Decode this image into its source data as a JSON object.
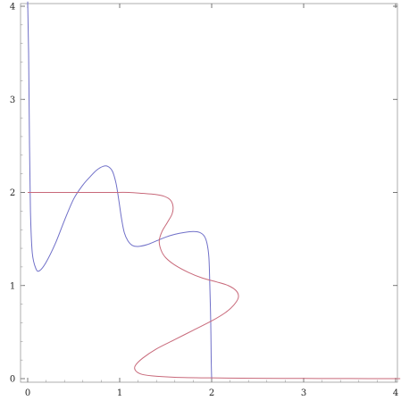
{
  "chart_data": {
    "type": "line",
    "title": "",
    "xlabel": "",
    "ylabel": "",
    "xlim": [
      0,
      4
    ],
    "ylim": [
      0,
      4
    ],
    "x_ticks": [
      0,
      1,
      2,
      3,
      4
    ],
    "y_ticks": [
      0,
      1,
      2,
      3,
      4
    ],
    "x_tick_labels": [
      "0",
      "1",
      "2",
      "3",
      "4"
    ],
    "y_tick_labels": [
      "0",
      "1",
      "2",
      "3",
      "4"
    ],
    "grid": false,
    "series": [
      {
        "color": "#6f6fc8",
        "points": [
          [
            0.0,
            4.05
          ],
          [
            0.01,
            3.5
          ],
          [
            0.02,
            2.5
          ],
          [
            0.03,
            1.8
          ],
          [
            0.05,
            1.35
          ],
          [
            0.09,
            1.18
          ],
          [
            0.13,
            1.16
          ],
          [
            0.2,
            1.25
          ],
          [
            0.3,
            1.45
          ],
          [
            0.4,
            1.7
          ],
          [
            0.5,
            1.93
          ],
          [
            0.6,
            2.08
          ],
          [
            0.68,
            2.17
          ],
          [
            0.75,
            2.24
          ],
          [
            0.82,
            2.28
          ],
          [
            0.87,
            2.28
          ],
          [
            0.92,
            2.23
          ],
          [
            0.96,
            2.1
          ],
          [
            0.99,
            1.92
          ],
          [
            1.02,
            1.72
          ],
          [
            1.05,
            1.57
          ],
          [
            1.09,
            1.48
          ],
          [
            1.14,
            1.43
          ],
          [
            1.2,
            1.42
          ],
          [
            1.3,
            1.44
          ],
          [
            1.4,
            1.48
          ],
          [
            1.5,
            1.52
          ],
          [
            1.6,
            1.55
          ],
          [
            1.7,
            1.57
          ],
          [
            1.8,
            1.58
          ],
          [
            1.87,
            1.57
          ],
          [
            1.92,
            1.53
          ],
          [
            1.95,
            1.45
          ],
          [
            1.97,
            1.3
          ],
          [
            1.98,
            1.0
          ],
          [
            1.99,
            0.6
          ],
          [
            1.995,
            0.2
          ],
          [
            2.0,
            0.0
          ]
        ]
      },
      {
        "color": "#c8697a",
        "points": [
          [
            0.0,
            2.0
          ],
          [
            0.3,
            2.0
          ],
          [
            0.6,
            2.0
          ],
          [
            0.9,
            2.0
          ],
          [
            1.1,
            2.0
          ],
          [
            1.25,
            1.99
          ],
          [
            1.38,
            1.98
          ],
          [
            1.48,
            1.96
          ],
          [
            1.55,
            1.92
          ],
          [
            1.58,
            1.85
          ],
          [
            1.57,
            1.77
          ],
          [
            1.52,
            1.68
          ],
          [
            1.46,
            1.58
          ],
          [
            1.43,
            1.48
          ],
          [
            1.45,
            1.38
          ],
          [
            1.5,
            1.3
          ],
          [
            1.6,
            1.22
          ],
          [
            1.75,
            1.14
          ],
          [
            1.9,
            1.08
          ],
          [
            2.05,
            1.04
          ],
          [
            2.18,
            1.0
          ],
          [
            2.27,
            0.94
          ],
          [
            2.29,
            0.87
          ],
          [
            2.24,
            0.79
          ],
          [
            2.15,
            0.71
          ],
          [
            2.0,
            0.62
          ],
          [
            1.8,
            0.52
          ],
          [
            1.6,
            0.42
          ],
          [
            1.4,
            0.32
          ],
          [
            1.25,
            0.22
          ],
          [
            1.17,
            0.14
          ],
          [
            1.17,
            0.09
          ],
          [
            1.23,
            0.05
          ],
          [
            1.35,
            0.03
          ],
          [
            1.6,
            0.015
          ],
          [
            2.0,
            0.008
          ],
          [
            2.5,
            0.004
          ],
          [
            3.0,
            0.002
          ],
          [
            3.5,
            0.001
          ],
          [
            4.05,
            0.0
          ]
        ]
      }
    ]
  }
}
